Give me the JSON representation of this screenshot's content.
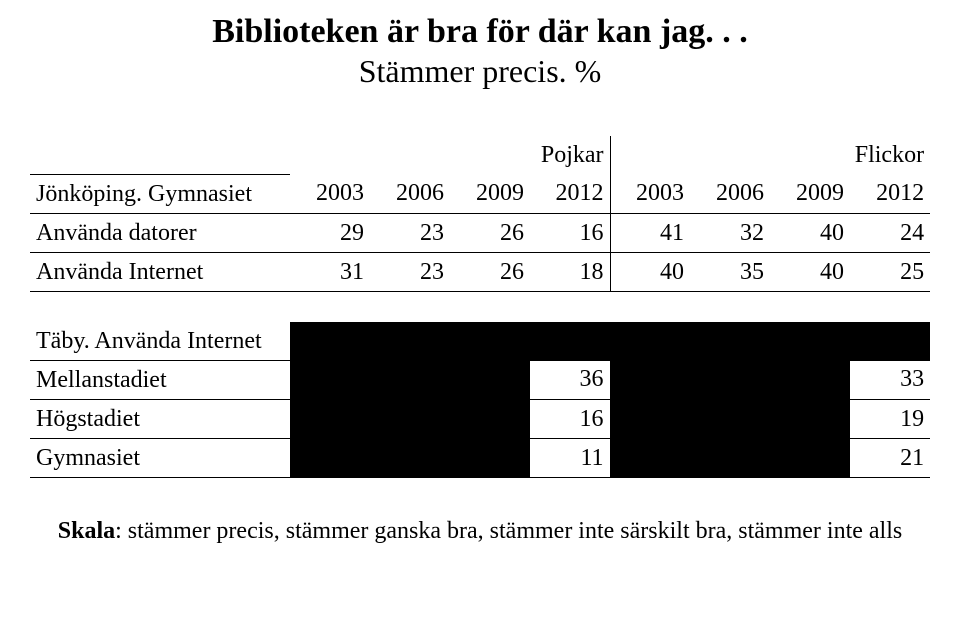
{
  "title": "Biblioteken är bra för där kan jag. . .",
  "subtitle": "Stämmer precis. %",
  "colors": {
    "black": "#000000",
    "background": "#ffffff",
    "border": "#000000"
  },
  "typography": {
    "family": "Times New Roman",
    "title_fontsize": 34,
    "subtitle_fontsize": 32,
    "body_fontsize": 24
  },
  "main_table": {
    "group_labels": {
      "left": "Pojkar",
      "right": "Flickor"
    },
    "row_header_label": "Jönköping. Gymnasiet",
    "years": [
      "2003",
      "2006",
      "2009",
      "2012",
      "2003",
      "2006",
      "2009",
      "2012"
    ],
    "rows": [
      {
        "label": "Använda datorer",
        "values": [
          "29",
          "23",
          "26",
          "16",
          "41",
          "32",
          "40",
          "24"
        ]
      },
      {
        "label": "Använda Internet",
        "values": [
          "31",
          "23",
          "26",
          "18",
          "40",
          "35",
          "40",
          "25"
        ]
      }
    ]
  },
  "section2": {
    "header_label": "Täby. Använda Internet",
    "rows": [
      {
        "label": "Mellanstadiet",
        "left_val": "36",
        "right_val": "33"
      },
      {
        "label": "Högstadiet",
        "left_val": "16",
        "right_val": "19"
      },
      {
        "label": "Gymnasiet",
        "left_val": "11",
        "right_val": "21"
      }
    ]
  },
  "footnote": {
    "lead": "Skala",
    "rest": ": stämmer precis, stämmer ganska bra, stämmer inte särskilt bra, stämmer inte alls"
  }
}
